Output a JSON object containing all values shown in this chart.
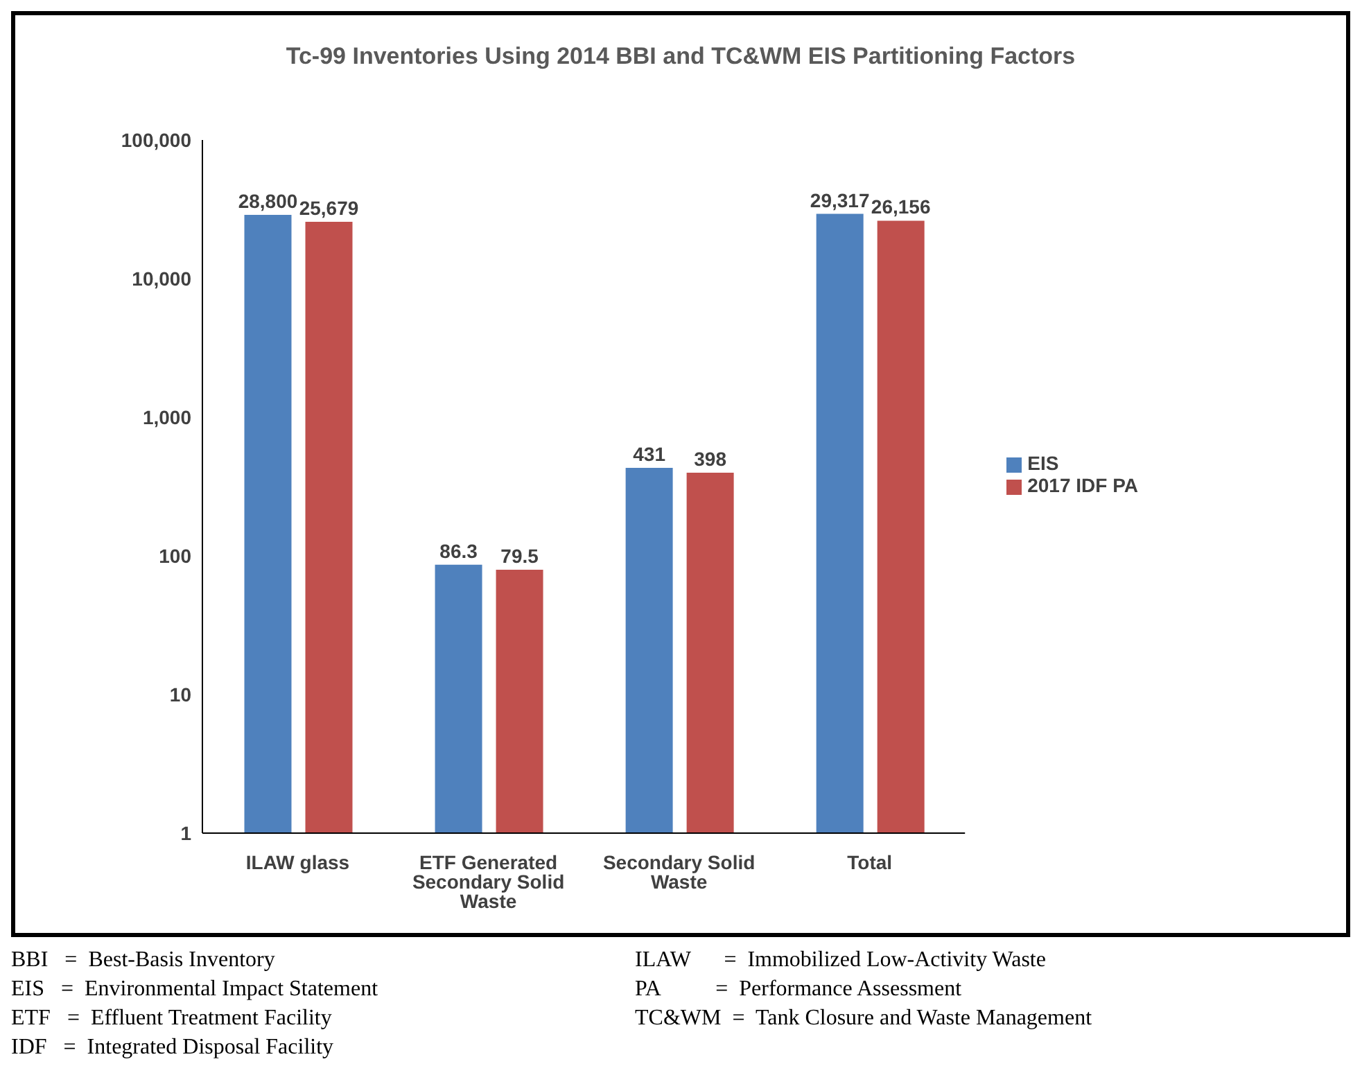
{
  "chart_data": {
    "type": "bar",
    "title": "Tc-99 Inventories Using 2014 BBI and  TC&WM EIS Partitioning Factors",
    "categories": [
      "ILAW glass",
      "ETF Generated Secondary Solid Waste",
      "Secondary Solid Waste",
      "Total"
    ],
    "series": [
      {
        "name": "EIS",
        "color": "#4f81bd",
        "values": [
          28800,
          86.3,
          431,
          29317
        ],
        "value_labels": [
          "28,800",
          "86.3",
          "431",
          "29,317"
        ]
      },
      {
        "name": "2017 IDF PA",
        "color": "#c0504d",
        "values": [
          25679,
          79.5,
          398,
          26156
        ],
        "value_labels": [
          "25,679",
          "79.5",
          "398",
          "26,156"
        ]
      }
    ],
    "log": "y",
    "ylim": [
      1,
      100000
    ],
    "yticks": [
      1,
      10,
      100,
      {
        "value": 1000,
        "label": "1,000"
      },
      {
        "value": 10000,
        "label": "10,000"
      },
      {
        "value": 100000,
        "label": "100,000"
      }
    ],
    "legend": "right",
    "grid": false,
    "annotations": [
      "BBI   =  Best-Basis Inventory",
      "ILAW      =  Immobilized Low-Activity Waste",
      "EIS   =  Environmental Impact Statement",
      "PA          =  Performance Assessment",
      "ETF   =  Effluent Treatment Facility",
      "TC&WM  =  Tank Closure and Waste Management",
      "IDF   =  Integrated Disposal Facility"
    ]
  }
}
